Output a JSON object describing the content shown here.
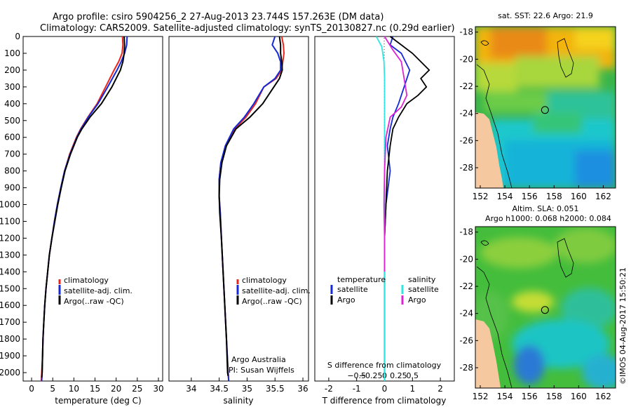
{
  "header": {
    "line1": "Argo profile: csiro 5904256_2 27-Aug-2013 23.744S 157.263E (DM data)",
    "line2": "Climatology: CARS2009. Satellite-adjusted climatology: synTS_20130827.nc (0.29d earlier)"
  },
  "colors": {
    "climatology": "#e8261e",
    "satellite": "#1428d6",
    "argo": "#000000",
    "sal_satellite": "#2de8e0",
    "sal_argo": "#e023d4",
    "land": "#f5c8a0"
  },
  "footer": {
    "imos_stamp": "©IMOS 04-Aug-2017 15:50:21",
    "argo_australia": "Argo Australia",
    "pi": "PI: Susan Wijffels"
  },
  "chart_data": [
    {
      "id": "temperature",
      "type": "line",
      "xlabel": "temperature (deg C)",
      "ylabel": "",
      "xlim": [
        -2,
        31
      ],
      "ylim": [
        2050,
        0
      ],
      "xticks": [
        0,
        5,
        10,
        15,
        20,
        25,
        30
      ],
      "yticks": [
        0,
        100,
        200,
        300,
        400,
        500,
        600,
        700,
        800,
        900,
        1000,
        1100,
        1200,
        1300,
        1400,
        1500,
        1600,
        1700,
        1800,
        1900,
        2000
      ],
      "legend": [
        "climatology",
        "satellite-adj. clim.",
        "Argo(..raw -QC)"
      ],
      "series": [
        {
          "name": "climatology",
          "color": "#e8261e",
          "points": [
            [
              21.5,
              0
            ],
            [
              21.6,
              50
            ],
            [
              21.4,
              100
            ],
            [
              20.6,
              150
            ],
            [
              19.5,
              200
            ],
            [
              17.5,
              300
            ],
            [
              15.5,
              400
            ],
            [
              13.3,
              480
            ],
            [
              11.6,
              550
            ],
            [
              10.6,
              600
            ],
            [
              9.0,
              700
            ],
            [
              7.8,
              800
            ],
            [
              6.9,
              900
            ],
            [
              6.1,
              1000
            ],
            [
              5.4,
              1100
            ],
            [
              4.8,
              1200
            ],
            [
              4.2,
              1300
            ],
            [
              3.8,
              1400
            ],
            [
              3.4,
              1500
            ],
            [
              3.1,
              1600
            ],
            [
              2.9,
              1700
            ],
            [
              2.7,
              1800
            ],
            [
              2.6,
              1900
            ],
            [
              2.4,
              2000
            ],
            [
              2.3,
              2050
            ]
          ]
        },
        {
          "name": "satellite-adj. clim.",
          "color": "#1428d6",
          "points": [
            [
              22.6,
              0
            ],
            [
              22.5,
              50
            ],
            [
              22.0,
              100
            ],
            [
              21.2,
              150
            ],
            [
              20.2,
              200
            ],
            [
              18.0,
              300
            ],
            [
              15.7,
              400
            ],
            [
              13.4,
              480
            ],
            [
              11.7,
              550
            ],
            [
              10.7,
              600
            ],
            [
              9.1,
              700
            ],
            [
              7.8,
              800
            ],
            [
              6.9,
              900
            ],
            [
              6.1,
              1000
            ],
            [
              5.4,
              1100
            ],
            [
              4.8,
              1200
            ],
            [
              4.2,
              1300
            ],
            [
              3.8,
              1400
            ],
            [
              3.4,
              1500
            ],
            [
              3.1,
              1600
            ],
            [
              2.9,
              1700
            ],
            [
              2.7,
              1800
            ],
            [
              2.6,
              1900
            ],
            [
              2.5,
              2000
            ],
            [
              2.4,
              2050
            ]
          ]
        },
        {
          "name": "Argo(..raw -QC)",
          "color": "#000000",
          "points": [
            [
              21.9,
              0
            ],
            [
              22.0,
              50
            ],
            [
              21.9,
              100
            ],
            [
              21.6,
              150
            ],
            [
              21.0,
              200
            ],
            [
              19.0,
              300
            ],
            [
              16.5,
              400
            ],
            [
              13.8,
              480
            ],
            [
              11.9,
              550
            ],
            [
              10.8,
              600
            ],
            [
              9.2,
              700
            ],
            [
              7.9,
              800
            ],
            [
              7.0,
              900
            ],
            [
              6.2,
              1000
            ],
            [
              5.5,
              1100
            ],
            [
              4.8,
              1200
            ],
            [
              4.2,
              1300
            ],
            [
              3.8,
              1400
            ],
            [
              3.4,
              1500
            ],
            [
              3.1,
              1600
            ],
            [
              2.9,
              1700
            ],
            [
              2.7,
              1800
            ],
            [
              2.6,
              1900
            ],
            [
              2.5,
              2000
            ],
            [
              2.4,
              2030
            ]
          ]
        }
      ]
    },
    {
      "id": "salinity",
      "type": "line",
      "xlabel": "salinity",
      "ylabel": "",
      "xlim": [
        33.6,
        36.1
      ],
      "ylim": [
        2050,
        0
      ],
      "xticks": [
        34,
        34.5,
        35,
        35.5,
        36
      ],
      "legend": [
        "climatology",
        "satellite-adj. clim.",
        "Argo(..raw -QC)"
      ],
      "series": [
        {
          "name": "climatology",
          "color": "#e8261e",
          "points": [
            [
              35.62,
              0
            ],
            [
              35.65,
              50
            ],
            [
              35.66,
              100
            ],
            [
              35.64,
              150
            ],
            [
              35.62,
              200
            ],
            [
              35.52,
              250
            ],
            [
              35.3,
              300
            ],
            [
              35.15,
              400
            ],
            [
              34.98,
              480
            ],
            [
              34.78,
              550
            ],
            [
              34.62,
              650
            ],
            [
              34.53,
              750
            ],
            [
              34.5,
              850
            ],
            [
              34.5,
              950
            ],
            [
              34.52,
              1050
            ],
            [
              34.54,
              1200
            ],
            [
              34.57,
              1400
            ],
            [
              34.6,
              1600
            ],
            [
              34.63,
              1800
            ],
            [
              34.66,
              2000
            ],
            [
              34.67,
              2050
            ]
          ]
        },
        {
          "name": "satellite-adj. clim.",
          "color": "#1428d6",
          "points": [
            [
              35.5,
              0
            ],
            [
              35.45,
              50
            ],
            [
              35.55,
              100
            ],
            [
              35.6,
              150
            ],
            [
              35.6,
              200
            ],
            [
              35.5,
              250
            ],
            [
              35.3,
              300
            ],
            [
              35.12,
              400
            ],
            [
              34.95,
              480
            ],
            [
              34.76,
              550
            ],
            [
              34.61,
              650
            ],
            [
              34.53,
              750
            ],
            [
              34.5,
              850
            ],
            [
              34.5,
              950
            ],
            [
              34.52,
              1050
            ],
            [
              34.54,
              1200
            ],
            [
              34.57,
              1400
            ],
            [
              34.6,
              1600
            ],
            [
              34.63,
              1800
            ],
            [
              34.66,
              2000
            ],
            [
              34.67,
              2050
            ]
          ]
        },
        {
          "name": "Argo(..raw -QC)",
          "color": "#000000",
          "points": [
            [
              35.58,
              0
            ],
            [
              35.6,
              50
            ],
            [
              35.6,
              100
            ],
            [
              35.62,
              150
            ],
            [
              35.63,
              200
            ],
            [
              35.58,
              250
            ],
            [
              35.48,
              300
            ],
            [
              35.28,
              400
            ],
            [
              35.05,
              480
            ],
            [
              34.8,
              550
            ],
            [
              34.63,
              650
            ],
            [
              34.55,
              750
            ],
            [
              34.51,
              850
            ],
            [
              34.5,
              950
            ],
            [
              34.51,
              1050
            ],
            [
              34.54,
              1200
            ],
            [
              34.57,
              1400
            ],
            [
              34.6,
              1600
            ],
            [
              34.63,
              1800
            ],
            [
              34.65,
              2000
            ],
            [
              34.66,
              2020
            ]
          ]
        }
      ]
    },
    {
      "id": "differences",
      "type": "line",
      "xlabel_top": "S difference from climatology",
      "xlabel": "T difference from climatology",
      "xlim": [
        -2.5,
        2.5
      ],
      "ylim": [
        2050,
        0
      ],
      "xticks": [
        -2,
        -1,
        0,
        1,
        2
      ],
      "s_ticks": [
        -0.5,
        -0.25,
        0,
        0.25,
        0.5
      ],
      "legend": {
        "temperature_title": "temperature",
        "salinity_title": "salinity",
        "items": [
          "satellite",
          "Argo",
          "satellite",
          "Argo"
        ]
      },
      "series": [
        {
          "name": "temperature satellite",
          "color": "#1428d6",
          "points": [
            [
              0.3,
              0
            ],
            [
              0.2,
              50
            ],
            [
              0.6,
              100
            ],
            [
              0.9,
              200
            ],
            [
              0.7,
              300
            ],
            [
              0.5,
              400
            ],
            [
              0.3,
              480
            ],
            [
              0.2,
              550
            ],
            [
              0.1,
              650
            ],
            [
              0.2,
              800
            ],
            [
              0.05,
              1000
            ],
            [
              0.0,
              1200
            ],
            [
              0.0,
              1600
            ],
            [
              0.0,
              2050
            ]
          ]
        },
        {
          "name": "temperature Argo",
          "color": "#000000",
          "points": [
            [
              0.2,
              0
            ],
            [
              0.6,
              50
            ],
            [
              1.0,
              100
            ],
            [
              1.3,
              150
            ],
            [
              1.6,
              200
            ],
            [
              1.3,
              250
            ],
            [
              1.5,
              300
            ],
            [
              1.2,
              350
            ],
            [
              0.8,
              400
            ],
            [
              0.5,
              480
            ],
            [
              0.3,
              550
            ],
            [
              0.2,
              650
            ],
            [
              0.1,
              800
            ],
            [
              0.05,
              1000
            ],
            [
              0.0,
              1200
            ],
            [
              0.0,
              1600
            ],
            [
              0.0,
              2030
            ]
          ]
        },
        {
          "name": "salinity satellite",
          "color": "#2de8e0",
          "points": [
            [
              -0.3,
              0
            ],
            [
              -0.1,
              60
            ],
            [
              -0.02,
              150
            ],
            [
              0.0,
              250
            ],
            [
              0.0,
              400
            ],
            [
              0.0,
              600
            ],
            [
              0.0,
              1000
            ],
            [
              0.0,
              1500
            ],
            [
              0.0,
              2050
            ]
          ]
        },
        {
          "name": "salinity Argo",
          "color": "#e023d4",
          "points": [
            [
              0.0,
              0
            ],
            [
              0.3,
              80
            ],
            [
              0.6,
              150
            ],
            [
              0.7,
              250
            ],
            [
              0.8,
              350
            ],
            [
              0.6,
              420
            ],
            [
              0.2,
              480
            ],
            [
              0.05,
              600
            ],
            [
              0.0,
              800
            ],
            [
              -0.02,
              1000
            ],
            [
              0.0,
              1200
            ],
            [
              0.0,
              1400
            ]
          ]
        }
      ]
    },
    {
      "id": "sst_map",
      "type": "heatmap",
      "title": "sat. SST: 22.6  Argo: 21.9",
      "xticks": [
        "152",
        "154",
        "156",
        "158",
        "160",
        "162"
      ],
      "yticks": [
        "-18",
        "-20",
        "-22",
        "-24",
        "-26",
        "-28"
      ],
      "xlim": [
        151.6,
        163
      ],
      "ylim": [
        -29.5,
        -17.6
      ],
      "marker": {
        "lon": 157.263,
        "lat": -23.744
      }
    },
    {
      "id": "sla_map",
      "type": "heatmap",
      "title_line1": "Altim. SLA: 0.051",
      "title_line2": "Argo h1000: 0.068 h2000: 0.084",
      "xticks": [
        "152",
        "154",
        "156",
        "158",
        "160",
        "162"
      ],
      "yticks": [
        "-18",
        "-20",
        "-22",
        "-24",
        "-26",
        "-28"
      ],
      "xlim": [
        151.6,
        163
      ],
      "ylim": [
        -29.5,
        -17.6
      ],
      "marker": {
        "lon": 157.263,
        "lat": -23.744
      }
    }
  ]
}
